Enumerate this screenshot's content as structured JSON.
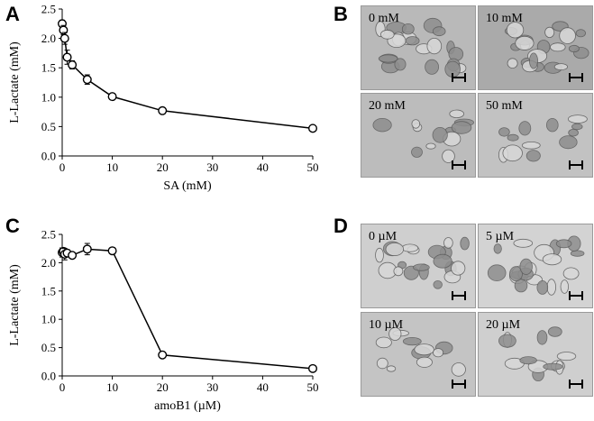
{
  "panels": {
    "A": {
      "letter": "A"
    },
    "B": {
      "letter": "B"
    },
    "C": {
      "letter": "C"
    },
    "D": {
      "letter": "D"
    }
  },
  "chart_data": [
    {
      "type": "line",
      "panel": "A",
      "xlabel": "SA (mM)",
      "ylabel": "L-Lactate (mM)",
      "xlim": [
        0,
        50
      ],
      "ylim": [
        0,
        2.5
      ],
      "xticks": [
        "0",
        "10",
        "20",
        "30",
        "40",
        "50"
      ],
      "yticks": [
        "0.0",
        "0.5",
        "1.0",
        "1.5",
        "2.0",
        "2.5"
      ],
      "grid": false,
      "series": [
        {
          "x": [
            0,
            0.25,
            0.5,
            1,
            2,
            5,
            10,
            20,
            50
          ],
          "y": [
            2.25,
            2.14,
            2.0,
            1.68,
            1.55,
            1.3,
            1.01,
            0.77,
            0.47
          ],
          "err": [
            0.06,
            0.08,
            0.1,
            0.12,
            0.07,
            0.08,
            0.03,
            0.03,
            0.03
          ]
        }
      ]
    },
    {
      "type": "line",
      "panel": "C",
      "xlabel": "amoB1 (µM)",
      "ylabel": "L-Lactate (mM)",
      "xlim": [
        0,
        50
      ],
      "ylim": [
        0,
        2.5
      ],
      "xticks": [
        "0",
        "10",
        "20",
        "30",
        "40",
        "50"
      ],
      "yticks": [
        "0.0",
        "0.5",
        "1.0",
        "1.5",
        "2.0",
        "2.5"
      ],
      "grid": false,
      "series": [
        {
          "x": [
            0,
            0.25,
            0.5,
            1,
            2,
            5,
            10,
            20,
            50
          ],
          "y": [
            2.18,
            2.2,
            2.15,
            2.17,
            2.13,
            2.24,
            2.21,
            0.37,
            0.13
          ],
          "err": [
            0.08,
            0.06,
            0.1,
            0.06,
            0.05,
            0.1,
            0.04,
            0.03,
            0.02
          ]
        }
      ]
    }
  ],
  "micrographs_B": [
    "0 mM",
    "10 mM",
    "20 mM",
    "50 mM"
  ],
  "micrographs_D": [
    "0 µM",
    "5 µM",
    "10 µM",
    "20 µM"
  ]
}
